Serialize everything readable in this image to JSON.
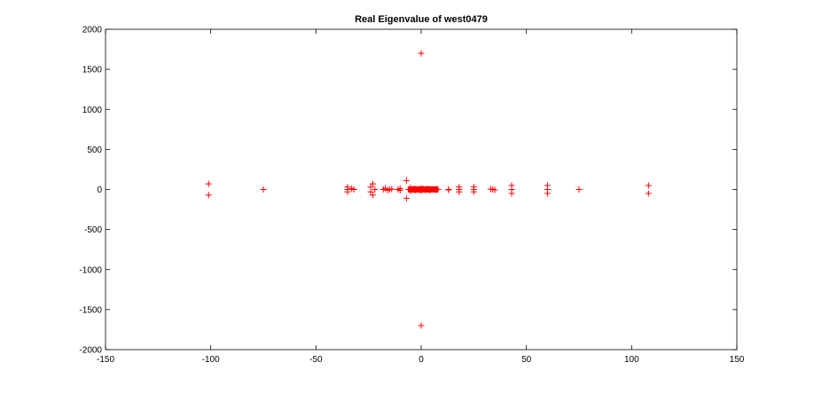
{
  "chart_data": {
    "type": "scatter",
    "title": "Real Eigenvalue of west0479",
    "xlabel": "",
    "ylabel": "",
    "xlim": [
      -150,
      150
    ],
    "ylim": [
      -2000,
      2000
    ],
    "xticks": [
      -150,
      -100,
      -50,
      0,
      50,
      100,
      150
    ],
    "yticks": [
      -2000,
      -1500,
      -1000,
      -500,
      0,
      500,
      1000,
      1500,
      2000
    ],
    "grid": false,
    "legend": "none",
    "marker": "+",
    "marker_color": "#ff0000",
    "points": [
      [
        0,
        1700
      ],
      [
        0,
        -1700
      ],
      [
        -101,
        70
      ],
      [
        -101,
        -70
      ],
      [
        -75,
        0
      ],
      [
        -35,
        30
      ],
      [
        -35,
        0
      ],
      [
        -35,
        -30
      ],
      [
        -32,
        0
      ],
      [
        -33,
        10
      ],
      [
        -24,
        30
      ],
      [
        -23,
        70
      ],
      [
        -23,
        -70
      ],
      [
        -22,
        0
      ],
      [
        -24,
        -30
      ],
      [
        -18,
        0
      ],
      [
        -17,
        15
      ],
      [
        -16,
        -10
      ],
      [
        -15,
        0
      ],
      [
        -14,
        5
      ],
      [
        -11,
        0
      ],
      [
        -10,
        10
      ],
      [
        -10,
        -10
      ],
      [
        -7,
        110
      ],
      [
        -7,
        -110
      ],
      [
        -6,
        0
      ],
      [
        -5,
        20
      ],
      [
        -5,
        -20
      ],
      [
        -4,
        0
      ],
      [
        -3,
        10
      ],
      [
        -3,
        -10
      ],
      [
        -2,
        0
      ],
      [
        -1,
        5
      ],
      [
        -1,
        -5
      ],
      [
        0,
        0
      ],
      [
        0,
        15
      ],
      [
        0,
        -15
      ],
      [
        1,
        0
      ],
      [
        1,
        5
      ],
      [
        2,
        0
      ],
      [
        2,
        -5
      ],
      [
        3,
        0
      ],
      [
        3,
        10
      ],
      [
        4,
        0
      ],
      [
        4,
        -10
      ],
      [
        5,
        0
      ],
      [
        6,
        0
      ],
      [
        7,
        5
      ],
      [
        7,
        -5
      ],
      [
        8,
        0
      ],
      [
        13,
        0
      ],
      [
        13,
        -5
      ],
      [
        18,
        30
      ],
      [
        18,
        0
      ],
      [
        18,
        -30
      ],
      [
        25,
        30
      ],
      [
        25,
        0
      ],
      [
        25,
        -30
      ],
      [
        33,
        5
      ],
      [
        34,
        0
      ],
      [
        35,
        -5
      ],
      [
        43,
        50
      ],
      [
        43,
        0
      ],
      [
        43,
        -50
      ],
      [
        60,
        50
      ],
      [
        60,
        0
      ],
      [
        60,
        -50
      ],
      [
        75,
        0
      ],
      [
        108,
        50
      ],
      [
        108,
        -50
      ]
    ]
  }
}
